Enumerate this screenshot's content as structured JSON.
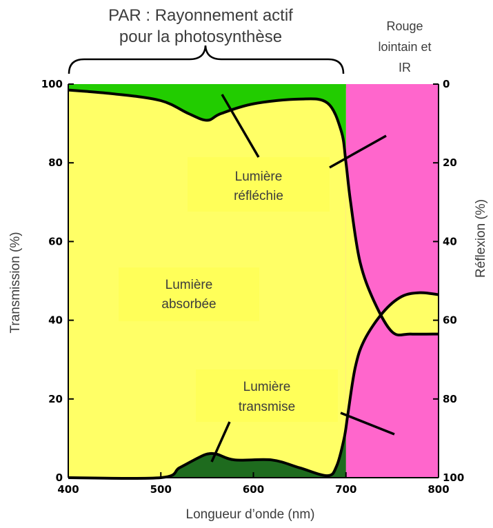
{
  "chart_data": {
    "type": "area",
    "xlabel": "Longueur d’onde (nm)",
    "ylabel_left": "Transmission (%)",
    "ylabel_right": "Réflexion (%)",
    "xlim": [
      400,
      800
    ],
    "ylim_left": [
      0,
      100
    ],
    "ylim_right": [
      100,
      0
    ],
    "x_ticks": [
      "400",
      "500",
      "600",
      "700",
      "800"
    ],
    "y_ticks_left": [
      "0",
      "20",
      "40",
      "60",
      "80",
      "100"
    ],
    "y_ticks_right": [
      "100",
      "80",
      "60",
      "40",
      "20",
      "0"
    ],
    "grid": false,
    "regions": {
      "par_label": "PAR : Rayonnement actif pour la photosynthèse",
      "far_red_label": "Rouge lointain et IR",
      "par_range": [
        400,
        700
      ],
      "far_red_range": [
        700,
        800
      ]
    },
    "annotations": {
      "reflected": "Lumière réfléchie",
      "absorbed": "Lumière absorbée",
      "transmitted": "Lumière transmise"
    },
    "colors": {
      "absorbed": "#ffff66",
      "reflected": "#22cc00",
      "transmitted": "#1e6b1e",
      "far_red": "#ff66cc",
      "curve": "#000000"
    },
    "series": [
      {
        "values_x": [
          400,
          450,
          500,
          530,
          550,
          565,
          600,
          650,
          680,
          695,
          700,
          705,
          715,
          730,
          750,
          770,
          800
        ],
        "values_y": [
          98.5,
          97.5,
          95.8,
          92.5,
          90.8,
          92.5,
          95.0,
          96.2,
          95.2,
          88,
          80,
          70,
          55,
          45,
          37,
          36.5,
          36.5
        ]
      },
      {
        "values_x": [
          400,
          500,
          520,
          540,
          550,
          560,
          580,
          620,
          650,
          680,
          690,
          698,
          702,
          710,
          720,
          740,
          760,
          780,
          800
        ],
        "values_y": [
          0,
          0,
          2.5,
          5.0,
          6.0,
          6.0,
          4.5,
          4.5,
          2.5,
          0.5,
          3,
          10,
          16,
          28,
          35,
          42,
          46,
          47,
          46.5
        ]
      }
    ]
  }
}
